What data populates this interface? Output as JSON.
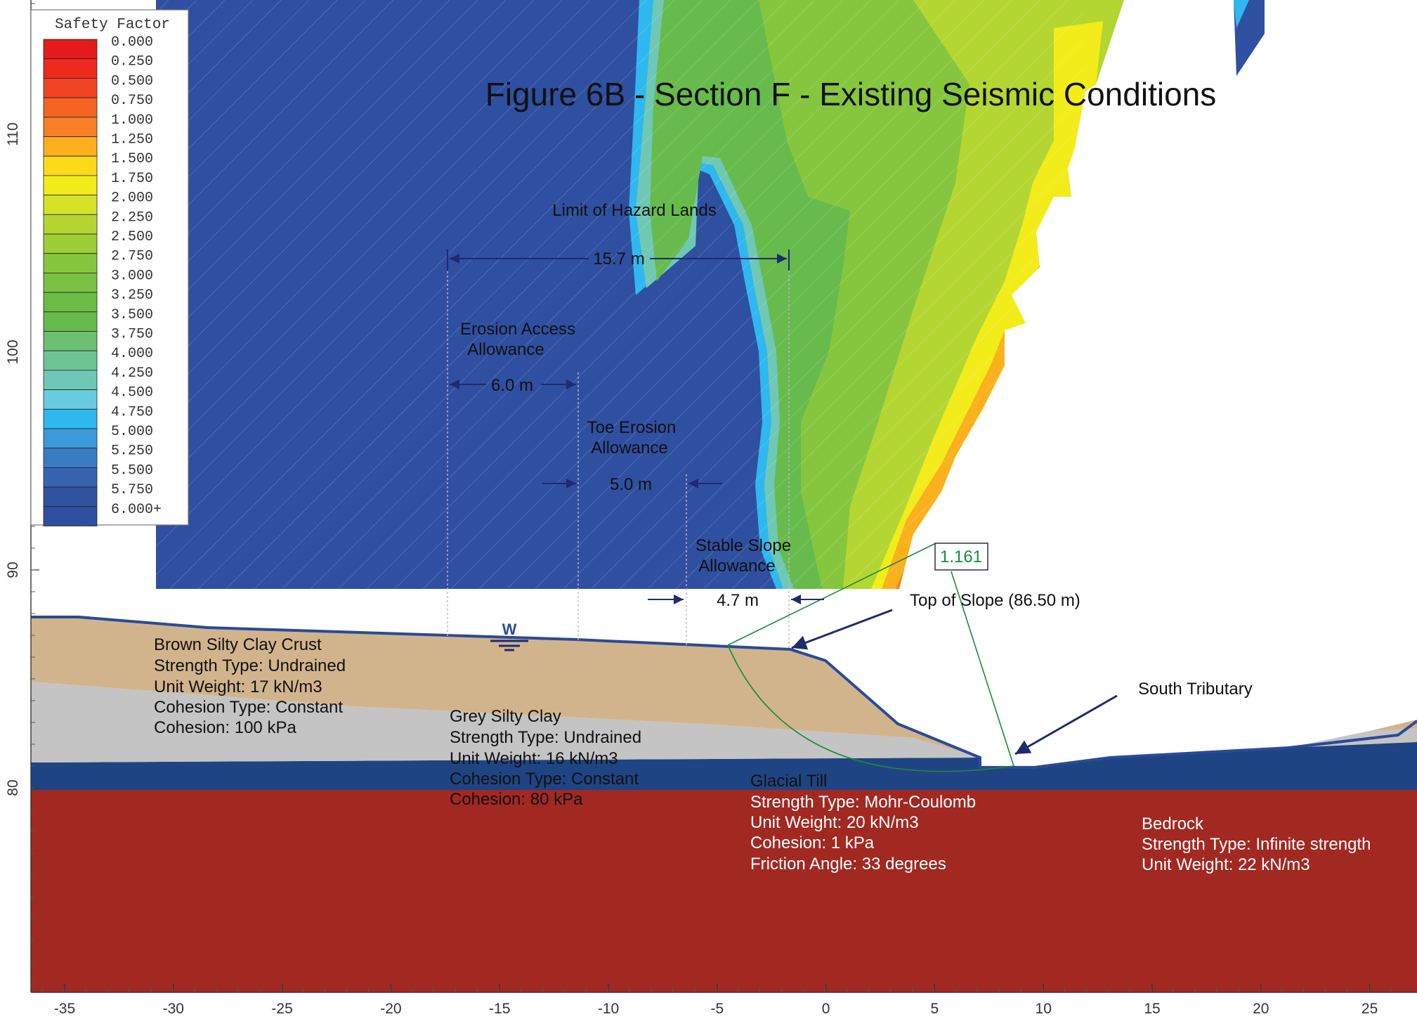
{
  "title": "Figure 6B - Section F - Existing Seismic Conditions",
  "legend": {
    "title": "Safety Factor",
    "entries": [
      {
        "label": "0.000",
        "color": "#e41a1c"
      },
      {
        "label": "0.250",
        "color": "#ee2a1f"
      },
      {
        "label": "0.500",
        "color": "#f24422"
      },
      {
        "label": "0.750",
        "color": "#f56424"
      },
      {
        "label": "1.000",
        "color": "#f88026"
      },
      {
        "label": "1.250",
        "color": "#fbb11d"
      },
      {
        "label": "1.500",
        "color": "#fcd919"
      },
      {
        "label": "1.750",
        "color": "#f2ec1a"
      },
      {
        "label": "2.000",
        "color": "#d4e228"
      },
      {
        "label": "2.250",
        "color": "#b4d632"
      },
      {
        "label": "2.500",
        "color": "#9cce38"
      },
      {
        "label": "2.750",
        "color": "#86c63e"
      },
      {
        "label": "3.000",
        "color": "#79c243"
      },
      {
        "label": "3.250",
        "color": "#6bbd45"
      },
      {
        "label": "3.500",
        "color": "#66bb4c"
      },
      {
        "label": "3.750",
        "color": "#6cc070"
      },
      {
        "label": "4.000",
        "color": "#6dc495"
      },
      {
        "label": "4.250",
        "color": "#6fc8b4"
      },
      {
        "label": "4.500",
        "color": "#68cce0"
      },
      {
        "label": "4.750",
        "color": "#2eb8ef"
      },
      {
        "label": "5.000",
        "color": "#3b9ad8"
      },
      {
        "label": "5.250",
        "color": "#3a7cc3"
      },
      {
        "label": "5.500",
        "color": "#3563b0"
      },
      {
        "label": "5.750",
        "color": "#31529f"
      },
      {
        "label": "6.000+",
        "color": "#2e4fa0"
      }
    ]
  },
  "axes": {
    "x_ticks": [
      "-35",
      "-30",
      "-25",
      "-20",
      "-15",
      "-10",
      "-5",
      "0",
      "5",
      "10",
      "15",
      "20",
      "25"
    ],
    "y_ticks": [
      "110",
      "100",
      "90",
      "80"
    ]
  },
  "annotations": {
    "hazard_label": "Limit of Hazard Lands",
    "dim_15_7": "15.7 m",
    "erosion_access": [
      "Erosion Access",
      "Allowance"
    ],
    "dim_6_0": "6.0 m",
    "toe_erosion": [
      "Toe Erosion",
      "Allowance"
    ],
    "dim_5_0": "5.0 m",
    "stable_slope": [
      "Stable Slope",
      "Allowance"
    ],
    "dim_4_7": "4.7 m",
    "top_of_slope": "Top of Slope (86.50 m)",
    "south_tributary": "South Tributary",
    "safety_factor_value": "1.161",
    "water_marker": "W"
  },
  "materials": {
    "brown": [
      "Brown Silty Clay Crust",
      "Strength Type: Undrained",
      "Unit Weight: 17 kN/m3",
      "Cohesion Type: Constant",
      "Cohesion: 100 kPa"
    ],
    "grey": [
      "Grey Silty Clay",
      "Strength Type: Undrained",
      "Unit Weight: 16 kN/m3",
      "Cohesion Type: Constant",
      "Cohesion: 80 kPa"
    ],
    "till": [
      "Glacial Till",
      "Strength Type: Mohr-Coulomb",
      "Unit Weight: 20 kN/m3",
      "Cohesion: 1 kPa",
      "Friction Angle: 33 degrees"
    ],
    "bedrock": [
      "Bedrock",
      "Strength Type: Infinite strength",
      "Unit Weight: 22 kN/m3"
    ]
  },
  "colors": {
    "blue_field": "#2f4fa1",
    "brown": "#d2b48c",
    "grey": "#c4c4c4",
    "till": "#1f4483",
    "bedrock": "#a22822",
    "outline": "#2a4a9a",
    "slip_circle": "#1a8a3a",
    "arrow": "#1f2a6f"
  }
}
